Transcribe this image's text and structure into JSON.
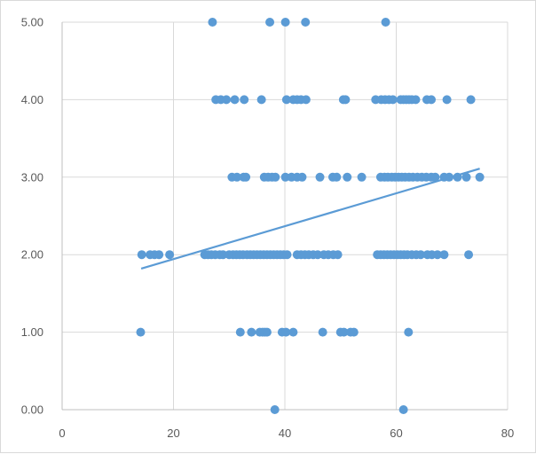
{
  "chart_data": {
    "type": "scatter",
    "title": "",
    "xlabel": "",
    "ylabel": "",
    "xlim": [
      0,
      80
    ],
    "ylim": [
      0,
      5
    ],
    "grid": {
      "x": true,
      "y": true
    },
    "legend": "none",
    "x_ticks": [
      "0",
      "20",
      "40",
      "60",
      "80"
    ],
    "y_ticks": [
      "0.00",
      "1.00",
      "2.00",
      "3.00",
      "4.00",
      "5.00"
    ],
    "colors": {
      "marker": "#5b9bd5",
      "trendline": "#5b9bd5",
      "grid": "#d9d9d9",
      "axis": "#bfbfbf",
      "tick_text": "#595959"
    },
    "trendline": {
      "type": "linear",
      "points": [
        [
          14.2,
          1.82
        ],
        [
          75.0,
          3.11
        ]
      ]
    },
    "series": [
      {
        "points": [
          [
            38.2,
            0
          ],
          [
            61.3,
            0
          ],
          [
            14.1,
            1
          ],
          [
            32.0,
            1
          ],
          [
            34.0,
            1
          ],
          [
            35.5,
            1
          ],
          [
            36.0,
            1
          ],
          [
            36.4,
            1
          ],
          [
            36.8,
            1
          ],
          [
            39.5,
            1
          ],
          [
            40.2,
            1
          ],
          [
            41.5,
            1
          ],
          [
            46.8,
            1
          ],
          [
            50.0,
            1
          ],
          [
            50.6,
            1
          ],
          [
            51.8,
            1
          ],
          [
            52.4,
            1
          ],
          [
            62.2,
            1
          ],
          [
            14.3,
            2
          ],
          [
            15.8,
            2
          ],
          [
            16.6,
            2
          ],
          [
            17.4,
            2
          ],
          [
            19.3,
            2
          ],
          [
            25.6,
            2
          ],
          [
            26.2,
            2
          ],
          [
            26.8,
            2
          ],
          [
            27.5,
            2
          ],
          [
            28.3,
            2
          ],
          [
            28.9,
            2
          ],
          [
            30.0,
            2
          ],
          [
            30.7,
            2
          ],
          [
            31.3,
            2
          ],
          [
            31.9,
            2
          ],
          [
            32.5,
            2
          ],
          [
            33.2,
            2
          ],
          [
            33.8,
            2
          ],
          [
            34.4,
            2
          ],
          [
            35.0,
            2
          ],
          [
            35.6,
            2
          ],
          [
            36.2,
            2
          ],
          [
            36.8,
            2
          ],
          [
            37.4,
            2
          ],
          [
            38.0,
            2
          ],
          [
            38.6,
            2
          ],
          [
            39.2,
            2
          ],
          [
            39.8,
            2
          ],
          [
            40.4,
            2
          ],
          [
            42.2,
            2
          ],
          [
            42.9,
            2
          ],
          [
            43.6,
            2
          ],
          [
            44.3,
            2
          ],
          [
            45.1,
            2
          ],
          [
            45.9,
            2
          ],
          [
            47.0,
            2
          ],
          [
            47.8,
            2
          ],
          [
            48.7,
            2
          ],
          [
            49.5,
            2
          ],
          [
            56.6,
            2
          ],
          [
            57.2,
            2
          ],
          [
            57.8,
            2
          ],
          [
            58.4,
            2
          ],
          [
            59.0,
            2
          ],
          [
            59.6,
            2
          ],
          [
            60.2,
            2
          ],
          [
            60.8,
            2
          ],
          [
            61.4,
            2
          ],
          [
            62.0,
            2
          ],
          [
            62.8,
            2
          ],
          [
            63.6,
            2
          ],
          [
            64.4,
            2
          ],
          [
            65.6,
            2
          ],
          [
            66.4,
            2
          ],
          [
            67.4,
            2
          ],
          [
            68.6,
            2
          ],
          [
            73.0,
            2
          ],
          [
            30.5,
            3
          ],
          [
            31.4,
            3
          ],
          [
            32.6,
            3
          ],
          [
            33.0,
            3
          ],
          [
            36.3,
            3
          ],
          [
            37.0,
            3
          ],
          [
            37.7,
            3
          ],
          [
            38.3,
            3
          ],
          [
            40.1,
            3
          ],
          [
            41.2,
            3
          ],
          [
            42.2,
            3
          ],
          [
            43.1,
            3
          ],
          [
            46.3,
            3
          ],
          [
            48.6,
            3
          ],
          [
            49.3,
            3
          ],
          [
            51.2,
            3
          ],
          [
            53.8,
            3
          ],
          [
            57.2,
            3
          ],
          [
            57.9,
            3
          ],
          [
            58.5,
            3
          ],
          [
            59.2,
            3
          ],
          [
            59.8,
            3
          ],
          [
            60.4,
            3
          ],
          [
            61.0,
            3
          ],
          [
            61.6,
            3
          ],
          [
            62.3,
            3
          ],
          [
            63.0,
            3
          ],
          [
            63.8,
            3
          ],
          [
            64.6,
            3
          ],
          [
            65.4,
            3
          ],
          [
            66.3,
            3
          ],
          [
            67.0,
            3
          ],
          [
            68.6,
            3
          ],
          [
            69.5,
            3
          ],
          [
            71.0,
            3
          ],
          [
            72.6,
            3
          ],
          [
            75.0,
            3
          ],
          [
            27.6,
            4
          ],
          [
            28.5,
            4
          ],
          [
            29.5,
            4
          ],
          [
            31.0,
            4
          ],
          [
            32.7,
            4
          ],
          [
            35.8,
            4
          ],
          [
            40.3,
            4
          ],
          [
            41.5,
            4
          ],
          [
            42.2,
            4
          ],
          [
            42.9,
            4
          ],
          [
            43.8,
            4
          ],
          [
            50.5,
            4
          ],
          [
            50.9,
            4
          ],
          [
            56.3,
            4
          ],
          [
            57.3,
            4
          ],
          [
            58.0,
            4
          ],
          [
            58.7,
            4
          ],
          [
            59.4,
            4
          ],
          [
            60.8,
            4
          ],
          [
            61.3,
            4
          ],
          [
            61.8,
            4
          ],
          [
            62.3,
            4
          ],
          [
            62.8,
            4
          ],
          [
            63.5,
            4
          ],
          [
            65.5,
            4
          ],
          [
            66.3,
            4
          ],
          [
            69.1,
            4
          ],
          [
            73.4,
            4
          ],
          [
            27.0,
            5
          ],
          [
            37.3,
            5
          ],
          [
            40.1,
            5
          ],
          [
            43.7,
            5
          ],
          [
            58.1,
            5
          ]
        ]
      }
    ]
  }
}
